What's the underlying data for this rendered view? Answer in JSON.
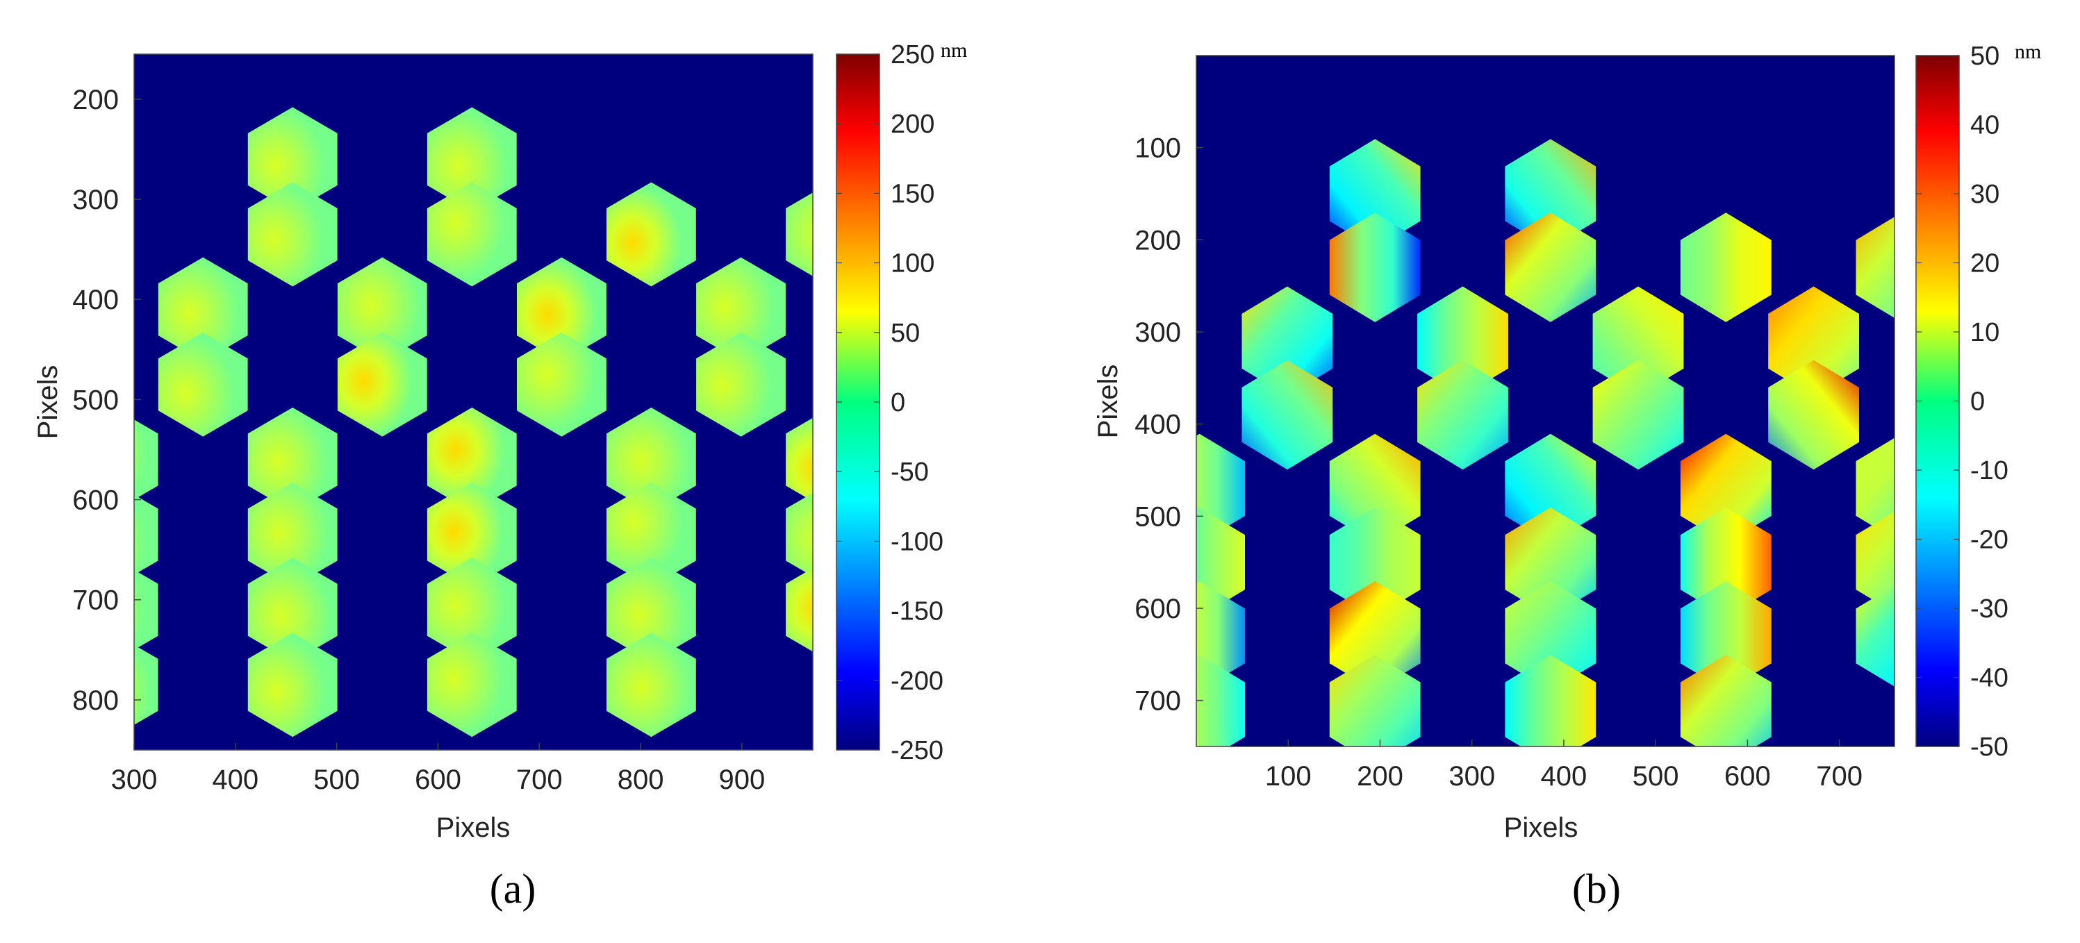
{
  "chart_data": [
    {
      "panel": "(a)",
      "type": "heatmap",
      "xlabel": "Pixels",
      "ylabel": "Pixels",
      "xlim": [
        300,
        970
      ],
      "ylim": [
        155,
        850
      ],
      "xticks": [
        300,
        400,
        500,
        600,
        700,
        800,
        900
      ],
      "yticks": [
        200,
        300,
        400,
        500,
        600,
        700,
        800
      ],
      "colorbar": {
        "unit": "nm",
        "range": [
          -250,
          250
        ],
        "ticks": [
          250,
          200,
          150,
          100,
          50,
          0,
          -50,
          -100,
          -150,
          -200,
          -250
        ],
        "colormap": "jet"
      },
      "background_color": "#00007f",
      "segment_grid": {
        "x0": 545,
        "y0": 260,
        "col_step": 88.5,
        "row_step": 150,
        "radius": 50,
        "rows": 8,
        "row_offsets": [
          -1,
          -1,
          -2,
          -2,
          -3,
          -3,
          -3,
          -3
        ],
        "row_counts": [
          2,
          5,
          6,
          7,
          6,
          5,
          5,
          4
        ]
      },
      "segment_baseline_nm": 5,
      "segment_peak_nm": 80,
      "hot_segments": [
        [
          5,
          2
        ],
        [
          3,
          1
        ],
        [
          6,
          4
        ],
        [
          2,
          2
        ],
        [
          4,
          2
        ],
        [
          4,
          4
        ],
        [
          1,
          2
        ],
        [
          3,
          4
        ]
      ]
    },
    {
      "panel": "(b)",
      "type": "heatmap",
      "xlabel": "Pixels",
      "ylabel": "Pixels",
      "xlim": [
        0,
        760
      ],
      "ylim": [
        0,
        750
      ],
      "xticks": [
        100,
        200,
        300,
        400,
        500,
        600,
        700
      ],
      "yticks": [
        100,
        200,
        300,
        400,
        500,
        600,
        700
      ],
      "colorbar": {
        "unit": "nm",
        "range": [
          -50,
          50
        ],
        "ticks": [
          50,
          40,
          30,
          20,
          10,
          0,
          -10,
          -20,
          -30,
          -40,
          -50
        ],
        "colormap": "jet"
      },
      "background_color": "#00007f",
      "segment_grid": {
        "x0": 290,
        "y0": 150,
        "col_step": 95.5,
        "row_step": 160,
        "radius": 56,
        "rows": 8,
        "row_offsets": [
          -1,
          -1,
          -2,
          -2,
          -3,
          -3,
          -3,
          -3
        ],
        "row_counts": [
          2,
          5,
          6,
          7,
          6,
          5,
          5,
          4
        ]
      },
      "segment_range_nm": [
        -35,
        42
      ]
    }
  ],
  "captions": {
    "a": "(a)",
    "b": "(b)"
  }
}
